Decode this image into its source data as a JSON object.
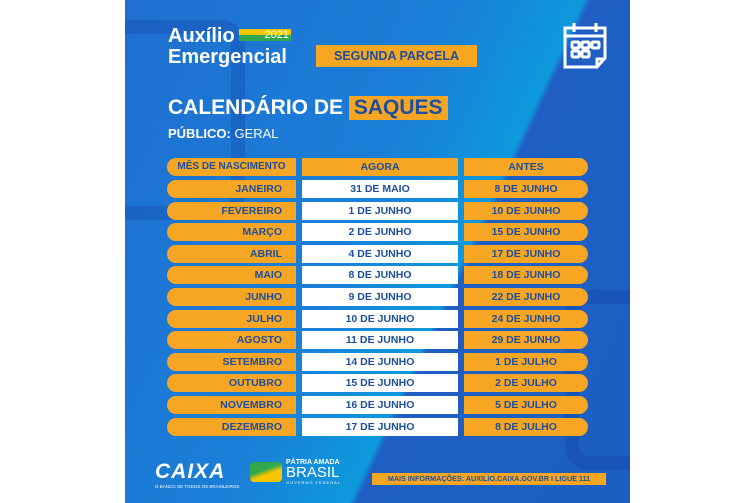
{
  "brand": {
    "line1": "Auxílio",
    "line2": "Emergencial",
    "year": "2021"
  },
  "badge": "SEGUNDA PARCELA",
  "heading": {
    "part1": "CALENDÁRIO DE",
    "highlight": "SAQUES"
  },
  "audience": {
    "label": "PÚBLICO:",
    "value": "GERAL"
  },
  "table": {
    "headers": [
      "MÊS DE NASCIMENTO",
      "AGORA",
      "ANTES"
    ],
    "rows": [
      [
        "JANEIRO",
        "31 DE MAIO",
        "8 DE JUNHO"
      ],
      [
        "FEVEREIRO",
        "1 DE JUNHO",
        "10 DE JUNHO"
      ],
      [
        "MARÇO",
        "2 DE JUNHO",
        "15 DE JUNHO"
      ],
      [
        "ABRIL",
        "4 DE JUNHO",
        "17 DE JUNHO"
      ],
      [
        "MAIO",
        "8 DE JUNHO",
        "18 DE JUNHO"
      ],
      [
        "JUNHO",
        "9 DE JUNHO",
        "22 DE JUNHO"
      ],
      [
        "JULHO",
        "10 DE JUNHO",
        "24 DE JUNHO"
      ],
      [
        "AGOSTO",
        "11 DE JUNHO",
        "29 DE JUNHO"
      ],
      [
        "SETEMBRO",
        "14 DE JUNHO",
        "1 DE JULHO"
      ],
      [
        "OUTUBRO",
        "15 DE JUNHO",
        "2 DE JULHO"
      ],
      [
        "NOVEMBRO",
        "16 DE JUNHO",
        "5 DE JULHO"
      ],
      [
        "DEZEMBRO",
        "17 DE JUNHO",
        "8 DE JULHO"
      ]
    ]
  },
  "footer": {
    "caixa": "CAIXA",
    "caixa_tagline": "O BANCO DE TODOS OS BRASILEIROS",
    "gov_line1": "PÁTRIA AMADA",
    "gov_line2": "BRASIL",
    "gov_line3": "GOVERNO FEDERAL",
    "info": "MAIS INFORMAÇÕES: AUXILIO.CAIXA.GOV.BR I LIGUE 111"
  },
  "colors": {
    "blue": "#1f6fd0",
    "orange": "#f6a623",
    "text_dark": "#1d4f9e"
  },
  "icons": [
    "calendar-icon"
  ]
}
